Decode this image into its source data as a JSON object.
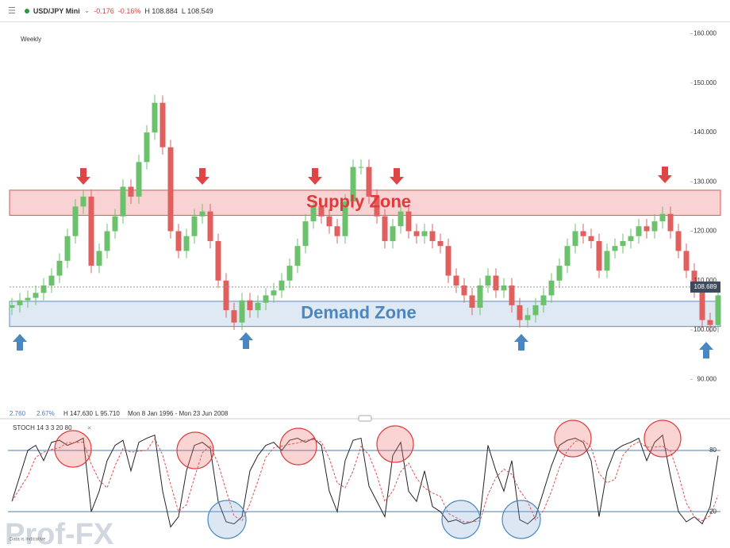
{
  "header": {
    "symbol": "USD/JPY Mini",
    "change": "-0.176",
    "change_pct": "-0.16%",
    "high": "H 108.884",
    "low": "L 108.549"
  },
  "info": {
    "change": "2.760",
    "change_pct": "2.67%",
    "high": "H 147.630",
    "low": "L 95.710",
    "range": "Mon 8 Jan 1996 - Mon 23 Jun 2008"
  },
  "watermark": "Prof-FX",
  "disclaimer": "Data is indicative",
  "chart_data": [
    {
      "type": "candlestick",
      "subtitle": "Weekly",
      "up_color": "#6cc26c",
      "down_color": "#e06060",
      "ylim": [
        82.5,
        162
      ],
      "yticks": [
        {
          "value": 90,
          "label": "90.000"
        },
        {
          "value": 100,
          "label": "100.000"
        },
        {
          "value": 110,
          "label": "110.000"
        },
        {
          "value": 120,
          "label": "120.000"
        },
        {
          "value": 130,
          "label": "130.000"
        },
        {
          "value": 140,
          "label": "140.000"
        },
        {
          "value": 150,
          "label": "150.000"
        },
        {
          "value": 160,
          "label": "160.000"
        }
      ],
      "last_price": 108.689,
      "zones": [
        {
          "label": "Supply Zone",
          "range": [
            123.2,
            128.3
          ],
          "color": "#f7c4c4",
          "border": "#e05050",
          "text_color": "#e03a3a"
        },
        {
          "label": "Demand Zone",
          "range": [
            100.7,
            105.8
          ],
          "color": "#d3e1f0",
          "border": "#5b8ec4",
          "text_color": "#4a86c0"
        }
      ],
      "open": [
        104.5,
        105,
        106,
        106.5,
        107.5,
        109,
        111,
        114,
        119,
        125,
        127,
        113,
        116,
        120,
        123,
        129,
        127,
        134,
        140,
        146,
        137,
        120,
        116,
        119,
        123,
        124,
        118,
        110,
        104,
        101.5,
        106,
        104,
        105.5,
        107,
        108,
        110,
        113,
        117,
        122,
        125,
        123,
        121,
        119,
        126,
        133,
        133,
        127,
        123,
        118,
        121,
        124,
        120,
        119,
        120,
        118,
        117,
        111,
        109,
        107,
        104.5,
        109,
        111,
        108,
        109,
        105,
        102,
        103,
        105,
        107,
        110,
        113,
        117,
        120,
        119,
        118,
        112,
        116,
        117,
        118,
        119,
        121,
        120,
        122,
        123.5,
        120,
        116,
        112,
        108,
        102,
        101
      ],
      "high": [
        106.5,
        107.5,
        108,
        109,
        110.5,
        112.5,
        115.5,
        120.5,
        126.5,
        128.5,
        128.5,
        117.5,
        121.5,
        124.5,
        130.5,
        130.5,
        135.5,
        141.5,
        147.63,
        147.5,
        138.5,
        121.5,
        120.5,
        124.5,
        125.5,
        125.5,
        119.5,
        111.5,
        105.5,
        107.5,
        107.5,
        107,
        108.5,
        109.5,
        111.5,
        114.5,
        118.5,
        123.5,
        126.5,
        126.5,
        124.5,
        122.5,
        127.5,
        134.5,
        134.5,
        134.5,
        128.5,
        124.5,
        122.5,
        125.5,
        125.5,
        121.5,
        121.5,
        121.5,
        119.5,
        118.5,
        112.5,
        110.5,
        108.5,
        110.5,
        112.5,
        112.5,
        110.5,
        110.5,
        106.5,
        104.5,
        106.5,
        108.5,
        111.5,
        114.5,
        118.5,
        121.5,
        121.5,
        120.5,
        119.5,
        117.5,
        118.5,
        119.5,
        120.5,
        122.5,
        122.5,
        123.5,
        125,
        125,
        121.5,
        117.5,
        113.5,
        109.5,
        103.5,
        108.5
      ],
      "low": [
        103,
        103.5,
        104.5,
        105,
        106,
        107.5,
        109.5,
        112.5,
        117.5,
        123.5,
        111.5,
        111.5,
        114.5,
        118.5,
        121.5,
        125.5,
        125.5,
        132.5,
        138.5,
        135.5,
        118.5,
        114.5,
        114.5,
        117.5,
        121.5,
        116.5,
        108.5,
        102.5,
        100,
        100,
        102.5,
        102.5,
        104,
        105.5,
        106.5,
        108.5,
        111.5,
        115.5,
        120.5,
        121.5,
        119.5,
        117.5,
        117.5,
        124.5,
        131.5,
        125.5,
        121.5,
        116.5,
        116.5,
        119.5,
        118.5,
        117.5,
        117.5,
        116.5,
        115.5,
        109.5,
        107.5,
        105.5,
        103,
        103,
        107.5,
        106.5,
        106.5,
        103.5,
        100.5,
        100.5,
        101.5,
        103.5,
        105.5,
        108.5,
        111.5,
        115.5,
        117.5,
        116.5,
        110.5,
        110.5,
        114.5,
        115.5,
        116.5,
        117.5,
        118.5,
        118.5,
        120.5,
        118.5,
        114.5,
        110.5,
        106.5,
        100.5,
        99.5,
        99.5
      ],
      "close": [
        105,
        106,
        106.5,
        107.5,
        109,
        111,
        114,
        119,
        125,
        127,
        113,
        116,
        120,
        123,
        129,
        127,
        134,
        140,
        146,
        137,
        120,
        116,
        119,
        123,
        124,
        118,
        110,
        104,
        101.5,
        106,
        104,
        105.5,
        107,
        108,
        110,
        113,
        117,
        122,
        125,
        123,
        121,
        119,
        126,
        133,
        133,
        127,
        123,
        118,
        121,
        124,
        120,
        119,
        120,
        118,
        117,
        111,
        109,
        107,
        104.5,
        109,
        111,
        108,
        109,
        105,
        102,
        103,
        105,
        107,
        110,
        113,
        117,
        120,
        119,
        118,
        112,
        116,
        117,
        118,
        119,
        121,
        120,
        122,
        123.5,
        120,
        116,
        112,
        108,
        102,
        101,
        107
      ]
    },
    {
      "type": "line",
      "title": "STOCH  14  3  3  20  80",
      "ylim": [
        -11,
        108
      ],
      "yticks": [
        20,
        80
      ],
      "grid": true,
      "grid_color": "#4a7fb8",
      "series": [
        {
          "color": "#222222",
          "dashed": false,
          "values": [
            30,
            55,
            80,
            85,
            70,
            88,
            90,
            85,
            88,
            92,
            20,
            40,
            70,
            85,
            90,
            60,
            88,
            92,
            95,
            40,
            5,
            15,
            60,
            85,
            88,
            82,
            30,
            10,
            8,
            15,
            60,
            75,
            85,
            88,
            80,
            90,
            92,
            88,
            92,
            85,
            40,
            20,
            70,
            90,
            92,
            45,
            30,
            15,
            75,
            88,
            40,
            30,
            60,
            25,
            20,
            10,
            12,
            8,
            10,
            15,
            85,
            60,
            40,
            70,
            12,
            8,
            15,
            40,
            65,
            85,
            90,
            92,
            88,
            70,
            15,
            60,
            80,
            85,
            88,
            92,
            70,
            88,
            95,
            55,
            20,
            10,
            15,
            8,
            25,
            75
          ]
        },
        {
          "color": "#e05050",
          "dashed": true,
          "values": [
            30,
            42.5,
            55,
            73.3,
            78.3,
            81,
            82.7,
            87.7,
            87.7,
            88.3,
            66.7,
            50.7,
            43.3,
            65,
            81.7,
            78.3,
            79.3,
            80,
            91.7,
            75.7,
            46.7,
            20,
            26.7,
            53.3,
            77.7,
            85,
            66.7,
            40.7,
            16,
            11,
            27.7,
            50,
            73.3,
            82.7,
            84.3,
            86,
            87.3,
            90,
            90.7,
            88.3,
            72.3,
            48.3,
            43.3,
            60,
            84,
            75.7,
            55.7,
            30,
            40,
            59.3,
            67.7,
            52.7,
            43.3,
            38.3,
            35,
            18.3,
            14,
            10,
            10,
            11,
            36.7,
            53.3,
            61.7,
            56.7,
            40.7,
            30,
            11.7,
            21,
            40,
            63.3,
            80,
            89,
            90,
            83.3,
            57.7,
            48.3,
            51.7,
            75,
            84.3,
            88.3,
            83.3,
            83.3,
            84.3,
            79.3,
            56.7,
            28.3,
            15,
            11,
            16,
            36
          ]
        }
      ]
    }
  ]
}
